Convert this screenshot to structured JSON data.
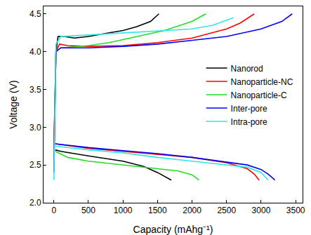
{
  "chart_data": {
    "type": "line",
    "x_label": "Capacity (mAhg⁻¹)",
    "y_label": "Voltage (V)",
    "xlim": [
      -150,
      3600
    ],
    "ylim": [
      2.0,
      4.6
    ],
    "xticks": [
      0,
      500,
      1000,
      1500,
      2000,
      2500,
      3000,
      3500
    ],
    "yticks": [
      {
        "value": 2.0,
        "label": "2.0"
      },
      {
        "value": 2.5,
        "label": "2.5"
      },
      {
        "value": 3.0,
        "label": "3.0"
      },
      {
        "value": 3.5,
        "label": "3.5"
      },
      {
        "value": 4.0,
        "label": "4.0"
      },
      {
        "value": 4.5,
        "label": "4.5"
      }
    ],
    "grid": false,
    "legend": "right",
    "series": [
      {
        "name": "Nanorod",
        "color": "#000000",
        "x": [
          0,
          30,
          60,
          150,
          300,
          500,
          800,
          1000,
          1200,
          1400,
          1520,
          null,
          20,
          100,
          500,
          1000,
          1300,
          1500,
          1700
        ],
        "values": [
          2.7,
          4.0,
          4.2,
          4.2,
          4.18,
          4.2,
          4.25,
          4.28,
          4.33,
          4.4,
          4.5,
          null,
          2.7,
          2.68,
          2.62,
          2.55,
          2.48,
          2.4,
          2.3
        ]
      },
      {
        "name": "Nanoparticle-NC",
        "color": "#ff0000",
        "x": [
          0,
          30,
          80,
          200,
          500,
          1000,
          1500,
          2000,
          2500,
          2700,
          2900,
          null,
          20,
          500,
          1000,
          1500,
          2000,
          2500,
          2800,
          2900,
          2970
        ],
        "values": [
          2.7,
          4.0,
          4.1,
          4.08,
          4.07,
          4.08,
          4.12,
          4.18,
          4.3,
          4.38,
          4.5,
          null,
          2.78,
          2.72,
          2.68,
          2.64,
          2.6,
          2.53,
          2.45,
          2.38,
          2.3
        ]
      },
      {
        "name": "Nanoparticle-C",
        "color": "#22dd22",
        "x": [
          0,
          30,
          100,
          500,
          800,
          1200,
          1600,
          2000,
          2200,
          null,
          20,
          200,
          500,
          1000,
          1500,
          1800,
          2000,
          2100
        ],
        "values": [
          2.5,
          4.0,
          4.05,
          4.08,
          4.12,
          4.2,
          4.28,
          4.4,
          4.5,
          null,
          2.68,
          2.6,
          2.55,
          2.5,
          2.45,
          2.42,
          2.37,
          2.3
        ]
      },
      {
        "name": "Inter-pore",
        "color": "#0000ff",
        "x": [
          0,
          30,
          100,
          500,
          1000,
          1500,
          2000,
          2500,
          3000,
          3300,
          3450,
          null,
          20,
          500,
          1000,
          1500,
          2000,
          2500,
          2800,
          3000,
          3100,
          3200
        ],
        "values": [
          2.4,
          4.0,
          4.05,
          4.05,
          4.07,
          4.1,
          4.15,
          4.2,
          4.3,
          4.4,
          4.5,
          null,
          2.78,
          2.73,
          2.69,
          2.65,
          2.6,
          2.54,
          2.5,
          2.44,
          2.38,
          2.3
        ]
      },
      {
        "name": "Intra-pore",
        "color": "#33e6e6",
        "x": [
          0,
          30,
          100,
          500,
          1000,
          1500,
          2000,
          2300,
          2500,
          2600,
          null,
          20,
          500,
          1000,
          1500,
          2000,
          2500,
          2800,
          3000,
          3100
        ],
        "values": [
          2.3,
          4.1,
          4.2,
          4.22,
          4.25,
          4.27,
          4.3,
          4.35,
          4.42,
          4.45,
          null,
          2.75,
          2.7,
          2.66,
          2.6,
          2.55,
          2.5,
          2.47,
          2.4,
          2.3
        ]
      }
    ]
  }
}
